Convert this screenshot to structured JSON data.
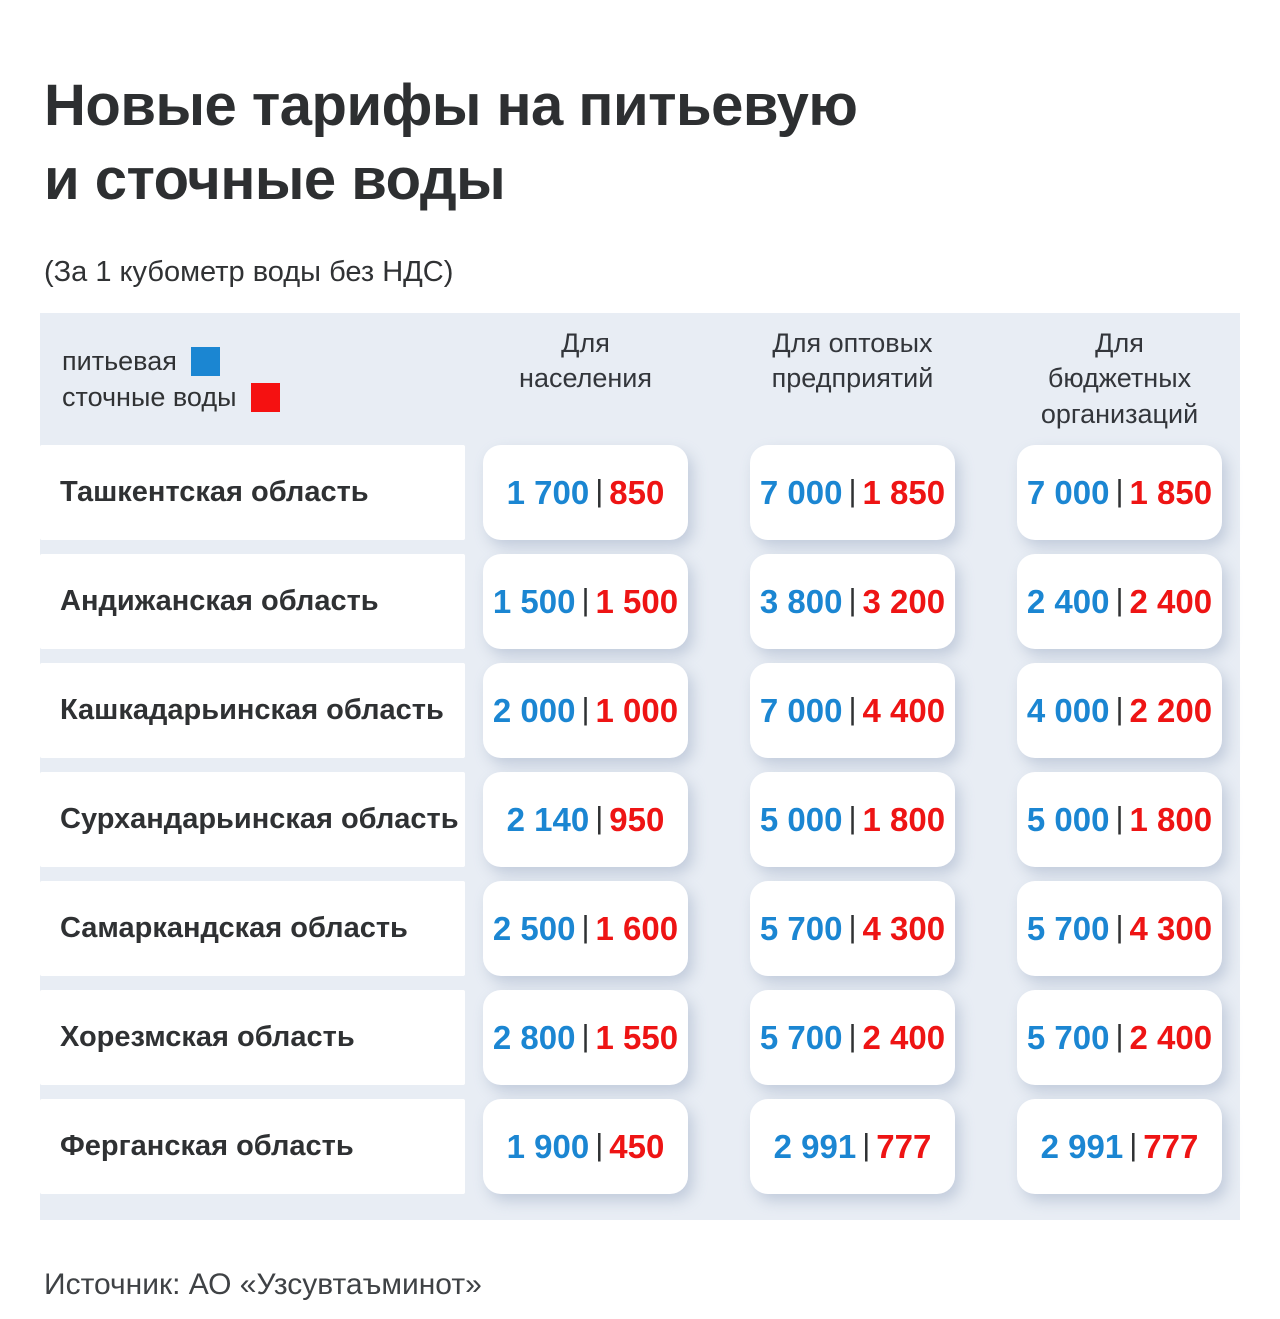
{
  "title": {
    "line1": "Новые тарифы на питьевую",
    "line2": "и сточные воды"
  },
  "subtitle": "(За 1 кубометр воды без НДС)",
  "legend": {
    "drinking": {
      "label": "питьевая",
      "color": "#1b86d2"
    },
    "waste": {
      "label": "сточные воды",
      "color": "#f51111"
    }
  },
  "source": "Источник: АО «Узсувтаъминот»",
  "colors": {
    "drinking_value": "#1b86d2",
    "waste_value": "#ee1414",
    "panel_background": "#e8edf4",
    "separator": "#2f3133"
  },
  "chart_data": {
    "type": "table",
    "title": "Новые тарифы на питьевую и сточные воды",
    "subtitle": "(За 1 кубометр воды без НДС)",
    "legend": [
      "питьевая",
      "сточные воды"
    ],
    "value_pair_format": "питьевая | сточные воды",
    "columns": [
      {
        "id": "population",
        "label_lines": [
          "Для",
          "населения"
        ]
      },
      {
        "id": "wholesale",
        "label_lines": [
          "Для оптовых",
          "предприятий"
        ]
      },
      {
        "id": "budget",
        "label_lines": [
          "Для",
          "бюджетных",
          "организаций"
        ]
      }
    ],
    "rows": [
      {
        "region": "Ташкентская область",
        "values": [
          [
            1700,
            850
          ],
          [
            7000,
            1850
          ],
          [
            7000,
            1850
          ]
        ]
      },
      {
        "region": "Андижанская область",
        "values": [
          [
            1500,
            1500
          ],
          [
            3800,
            3200
          ],
          [
            2400,
            2400
          ]
        ]
      },
      {
        "region": "Кашкадарьинская область",
        "values": [
          [
            2000,
            1000
          ],
          [
            7000,
            4400
          ],
          [
            4000,
            2200
          ]
        ]
      },
      {
        "region": "Сурхандарьинская область",
        "values": [
          [
            2140,
            950
          ],
          [
            5000,
            1800
          ],
          [
            5000,
            1800
          ]
        ]
      },
      {
        "region": "Самаркандская область",
        "values": [
          [
            2500,
            1600
          ],
          [
            5700,
            4300
          ],
          [
            5700,
            4300
          ]
        ]
      },
      {
        "region": "Хорезмская область",
        "values": [
          [
            2800,
            1550
          ],
          [
            5700,
            2400
          ],
          [
            5700,
            2400
          ]
        ]
      },
      {
        "region": "Ферганская область",
        "values": [
          [
            1900,
            450
          ],
          [
            2991,
            777
          ],
          [
            2991,
            777
          ]
        ]
      }
    ]
  }
}
